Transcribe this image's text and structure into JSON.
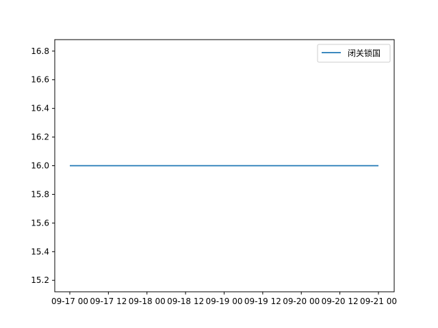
{
  "chart_data": {
    "type": "line",
    "title": "",
    "xlabel": "",
    "ylabel": "",
    "x": [
      "09-17 00",
      "09-21 00"
    ],
    "x_ticks": [
      "09-17 00",
      "09-17 12",
      "09-18 00",
      "09-18 12",
      "09-19 00",
      "09-19 12",
      "09-20 00",
      "09-20 12",
      "09-21 00"
    ],
    "y_ticks": [
      "15.2",
      "15.4",
      "15.6",
      "15.8",
      "16.0",
      "16.2",
      "16.4",
      "16.6",
      "16.8"
    ],
    "ylim": [
      15.12,
      16.88
    ],
    "series": [
      {
        "name": "闭关锁国",
        "color": "#1f77b4",
        "values": [
          16.0,
          16.0
        ]
      }
    ],
    "grid": false,
    "legend_position": "top-right"
  }
}
